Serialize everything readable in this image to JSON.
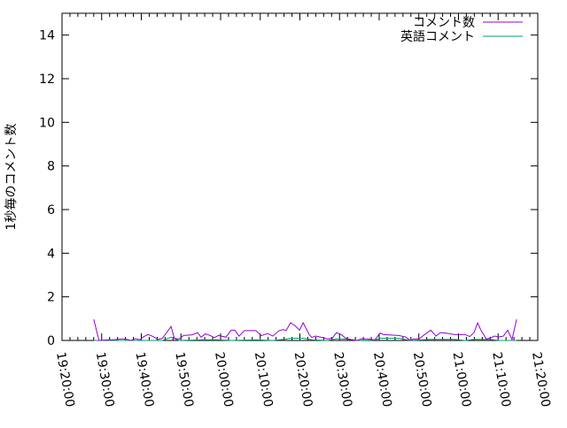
{
  "chart_data": {
    "type": "line",
    "title": "",
    "xlabel": "",
    "ylabel": "1秒毎のコメント数",
    "xlim": [
      "19:20:00",
      "21:20:00"
    ],
    "ylim": [
      0,
      15
    ],
    "xticks": [
      "19:20:00",
      "19:30:00",
      "19:40:00",
      "19:50:00",
      "20:00:00",
      "20:10:00",
      "20:20:00",
      "20:30:00",
      "20:40:00",
      "20:50:00",
      "21:00:00",
      "21:10:00",
      "21:20:00"
    ],
    "yticks": [
      "0",
      "2",
      "4",
      "6",
      "8",
      "10",
      "12",
      "14"
    ],
    "grid": false,
    "legend": "top-right",
    "series": [
      {
        "name": "コメント数",
        "color": "#9400d3",
        "points": [
          [
            "19:28:00",
            0.97
          ],
          [
            "19:29:20",
            0
          ],
          [
            "19:31:50",
            0.03
          ],
          [
            "19:33:00",
            0.03
          ],
          [
            "19:35:10",
            0.07
          ],
          [
            "19:36:20",
            0.05
          ],
          [
            "19:37:20",
            0
          ],
          [
            "19:38:30",
            0.08
          ],
          [
            "19:39:40",
            0.03
          ],
          [
            "19:40:30",
            0.16
          ],
          [
            "19:41:40",
            0.27
          ],
          [
            "19:43:00",
            0.18
          ],
          [
            "19:44:10",
            0.04
          ],
          [
            "19:45:20",
            0.1
          ],
          [
            "19:47:30",
            0.64
          ],
          [
            "19:48:20",
            0.1
          ],
          [
            "19:49:30",
            0.06
          ],
          [
            "19:50:40",
            0.23
          ],
          [
            "19:52:50",
            0.26
          ],
          [
            "19:54:10",
            0.36
          ],
          [
            "19:55:05",
            0.15
          ],
          [
            "19:56:10",
            0.3
          ],
          [
            "19:57:20",
            0.23
          ],
          [
            "19:58:25",
            0.13
          ],
          [
            "19:59:30",
            0.23
          ],
          [
            "20:01:20",
            0.15
          ],
          [
            "20:02:40",
            0.47
          ],
          [
            "20:03:35",
            0.47
          ],
          [
            "20:04:40",
            0.2
          ],
          [
            "20:06:00",
            0.45
          ],
          [
            "20:07:25",
            0.45
          ],
          [
            "20:08:55",
            0.45
          ],
          [
            "20:10:15",
            0.22
          ],
          [
            "20:11:50",
            0.32
          ],
          [
            "20:13:10",
            0.2
          ],
          [
            "20:14:45",
            0.45
          ],
          [
            "20:15:50",
            0.5
          ],
          [
            "20:16:30",
            0.45
          ],
          [
            "20:17:40",
            0.81
          ],
          [
            "20:18:45",
            0.68
          ],
          [
            "20:19:55",
            0.47
          ],
          [
            "20:20:50",
            0.81
          ],
          [
            "20:22:20",
            0.27
          ],
          [
            "20:23:00",
            0.14
          ],
          [
            "20:23:55",
            0.2
          ],
          [
            "20:25:30",
            0.14
          ],
          [
            "20:27:00",
            0.07
          ],
          [
            "20:28:10",
            0.1
          ],
          [
            "20:29:15",
            0.36
          ],
          [
            "20:30:25",
            0.27
          ],
          [
            "20:31:30",
            0.11
          ],
          [
            "20:32:40",
            0.04
          ],
          [
            "20:34:25",
            0
          ],
          [
            "20:35:30",
            0.07
          ],
          [
            "20:37:05",
            0.07
          ],
          [
            "20:38:55",
            0.03
          ],
          [
            "20:40:15",
            0.34
          ],
          [
            "20:41:05",
            0.27
          ],
          [
            "20:44:55",
            0.23
          ],
          [
            "20:46:40",
            0.16
          ],
          [
            "20:47:50",
            0
          ],
          [
            "20:48:45",
            0.07
          ],
          [
            "20:50:05",
            0.07
          ],
          [
            "20:51:10",
            0.23
          ],
          [
            "20:53:00",
            0.47
          ],
          [
            "20:54:20",
            0.2
          ],
          [
            "20:55:25",
            0.36
          ],
          [
            "20:56:45",
            0.34
          ],
          [
            "20:59:00",
            0.27
          ],
          [
            "21:01:40",
            0.27
          ],
          [
            "21:02:50",
            0.18
          ],
          [
            "21:03:55",
            0.36
          ],
          [
            "21:04:50",
            0.81
          ],
          [
            "21:05:40",
            0.47
          ],
          [
            "21:07:00",
            0.07
          ],
          [
            "21:07:55",
            0.1
          ],
          [
            "21:09:05",
            0.2
          ],
          [
            "21:10:10",
            0.16
          ],
          [
            "21:11:20",
            0.2
          ],
          [
            "21:12:25",
            0.47
          ],
          [
            "21:13:30",
            0.04
          ],
          [
            "21:14:40",
            0.97
          ]
        ]
      },
      {
        "name": "英語コメント",
        "color": "#009e73",
        "points": [
          [
            "19:28:00",
            0
          ],
          [
            "19:45:20",
            0
          ],
          [
            "19:47:30",
            0.15
          ],
          [
            "19:49:30",
            0
          ],
          [
            "19:55:05",
            0.03
          ],
          [
            "19:59:30",
            0.03
          ],
          [
            "20:02:40",
            0
          ],
          [
            "20:08:55",
            0.03
          ],
          [
            "20:13:10",
            0
          ],
          [
            "20:15:50",
            0.05
          ],
          [
            "20:17:40",
            0.1
          ],
          [
            "20:20:50",
            0.1
          ],
          [
            "20:23:00",
            0.03
          ],
          [
            "20:27:00",
            0
          ],
          [
            "20:29:15",
            0.08
          ],
          [
            "20:32:40",
            0.05
          ],
          [
            "20:34:25",
            0
          ],
          [
            "20:38:55",
            0.02
          ],
          [
            "20:40:15",
            0.1
          ],
          [
            "20:44:55",
            0.1
          ],
          [
            "20:47:50",
            0
          ],
          [
            "20:53:00",
            0.05
          ],
          [
            "20:59:00",
            0.05
          ],
          [
            "21:01:40",
            0
          ],
          [
            "21:03:55",
            0.05
          ],
          [
            "21:07:55",
            0.05
          ],
          [
            "21:10:10",
            0
          ],
          [
            "21:14:40",
            0
          ]
        ]
      }
    ]
  }
}
